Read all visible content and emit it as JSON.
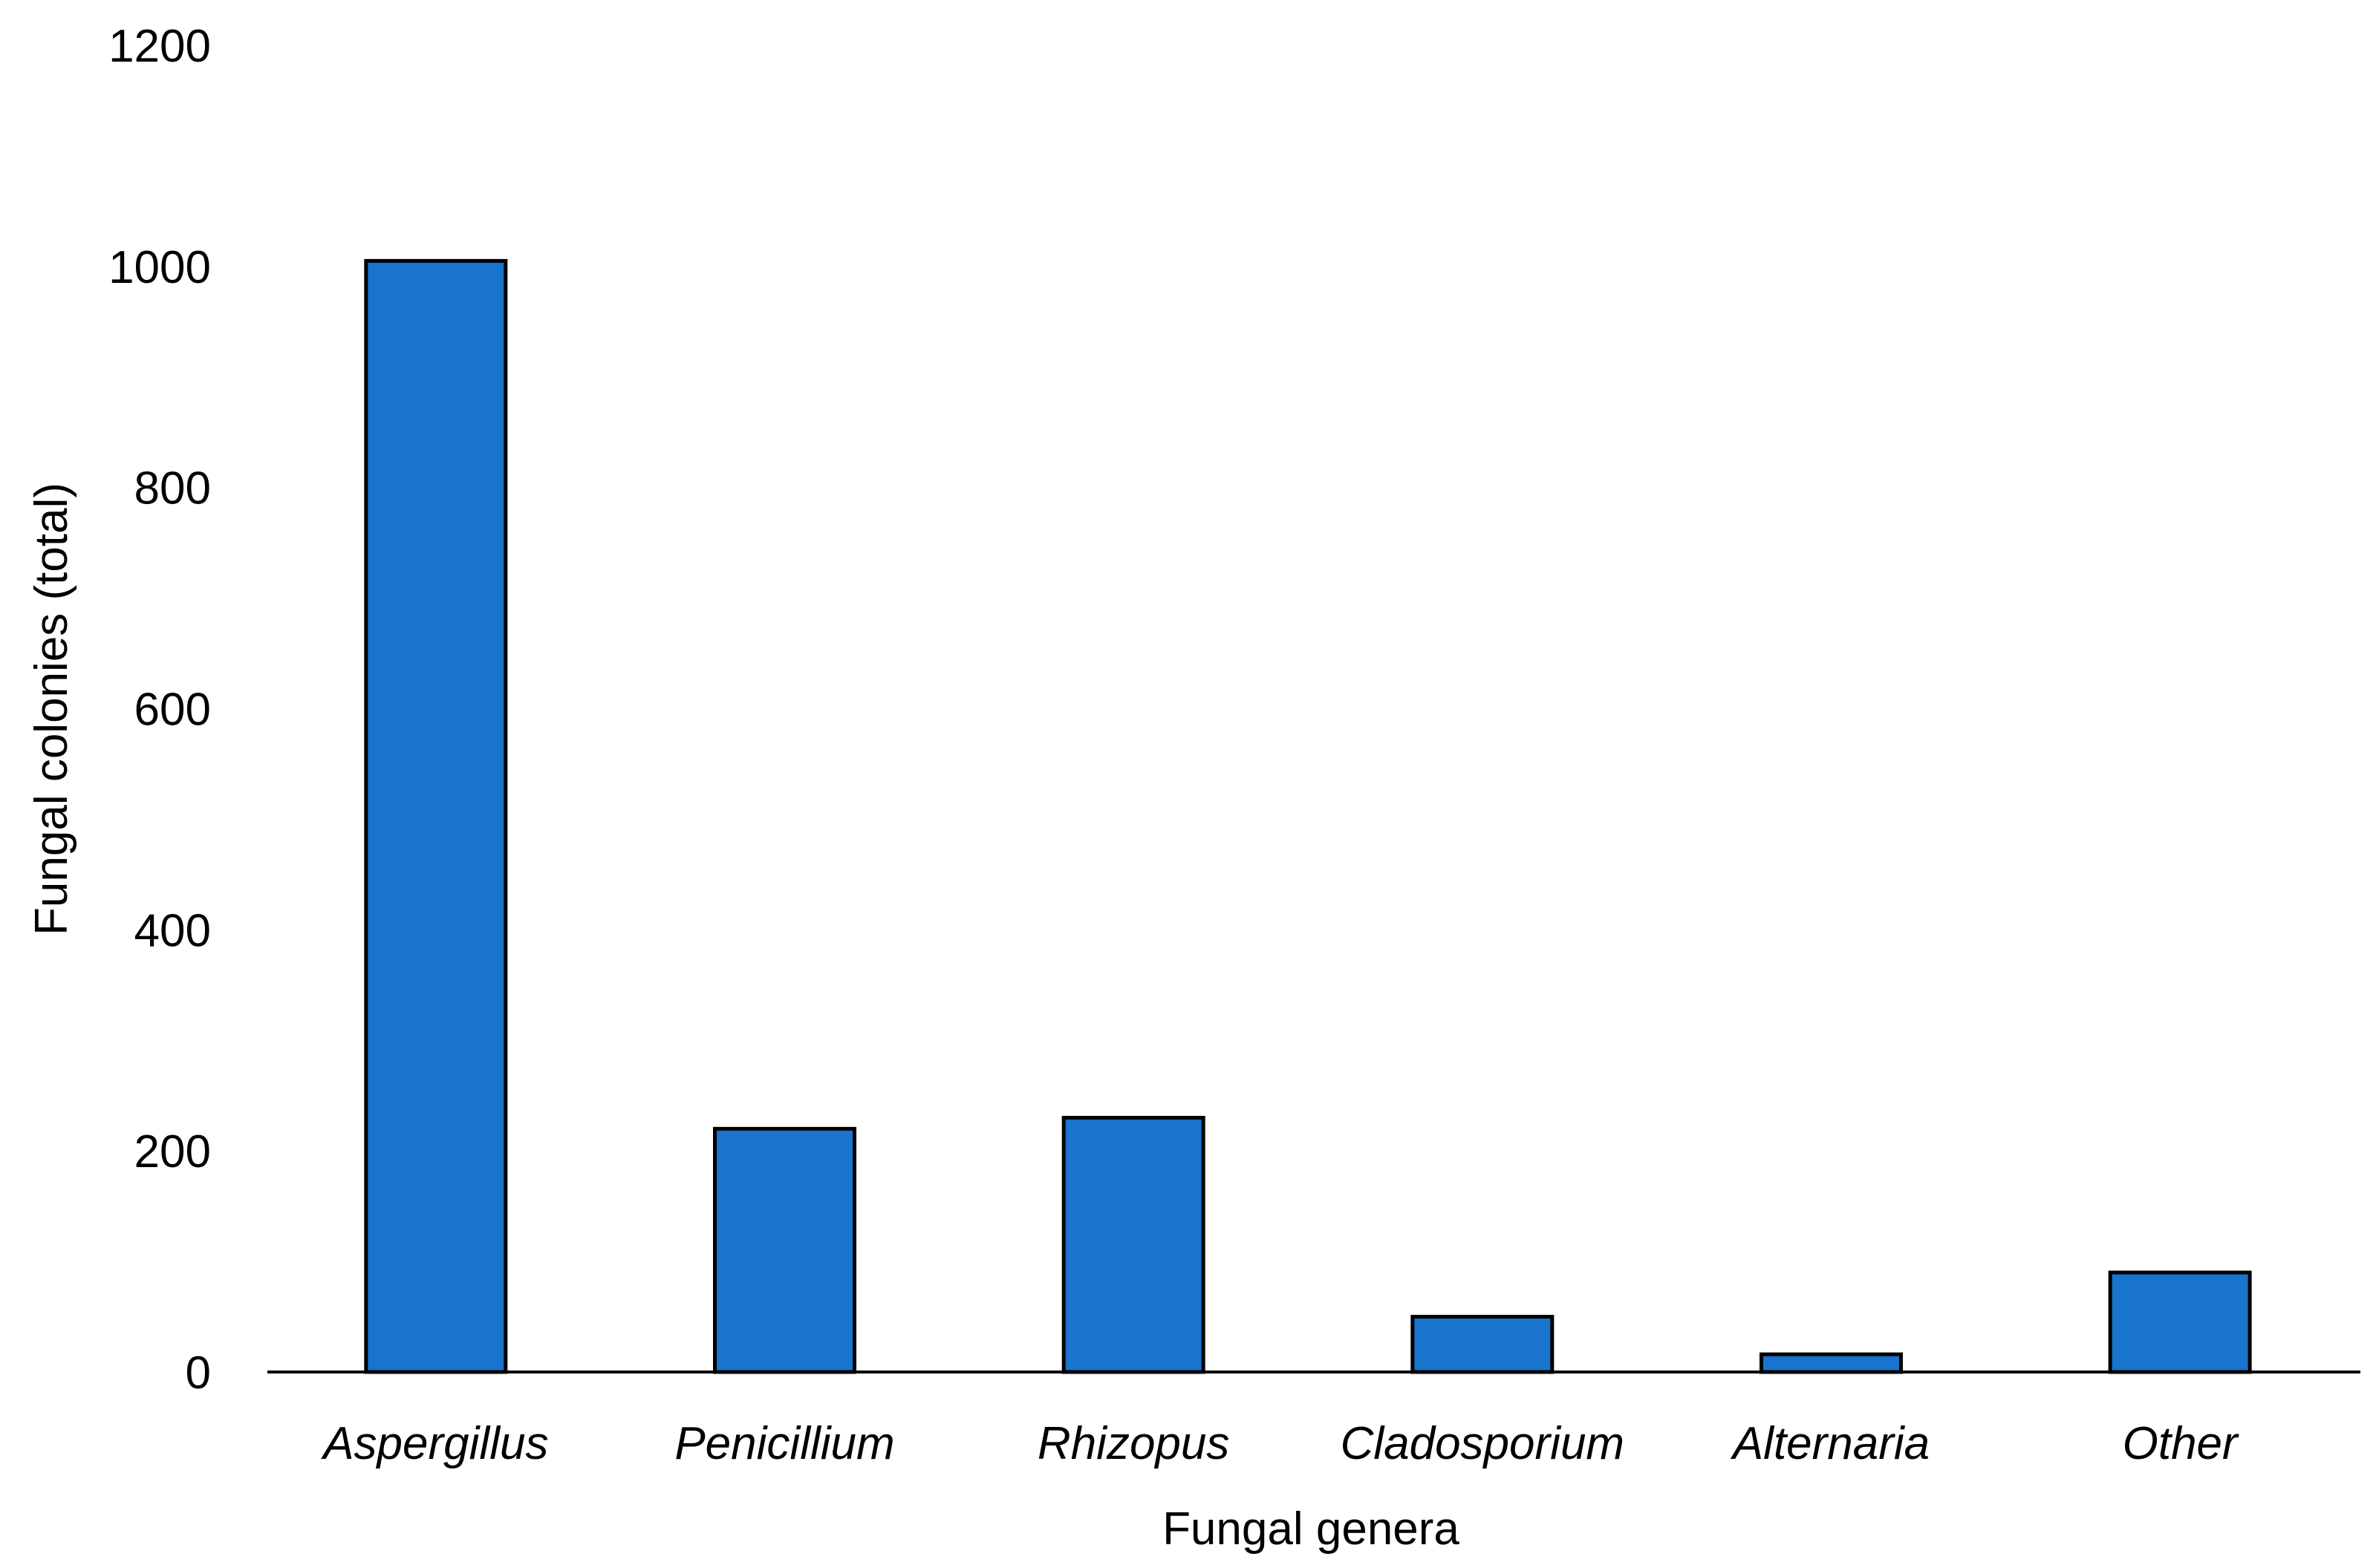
{
  "chart_data": {
    "type": "bar",
    "title": "",
    "xlabel": "Fungal genera",
    "ylabel": "Fungal colonies (total)",
    "categories": [
      "Aspergillus",
      "Penicillium",
      "Rhizopus",
      "Cladosporium",
      "Alternaria",
      "Other"
    ],
    "values": [
      1005,
      220,
      230,
      50,
      16,
      90
    ],
    "ylim": [
      0,
      1200
    ],
    "yticks": [
      "0",
      "200",
      "400",
      "600",
      "800",
      "1000",
      "1200"
    ],
    "grid": false,
    "legend": "none",
    "bar_color": "#1874cd",
    "bar_edge_color": "#000000",
    "axis_color": "#000000"
  }
}
